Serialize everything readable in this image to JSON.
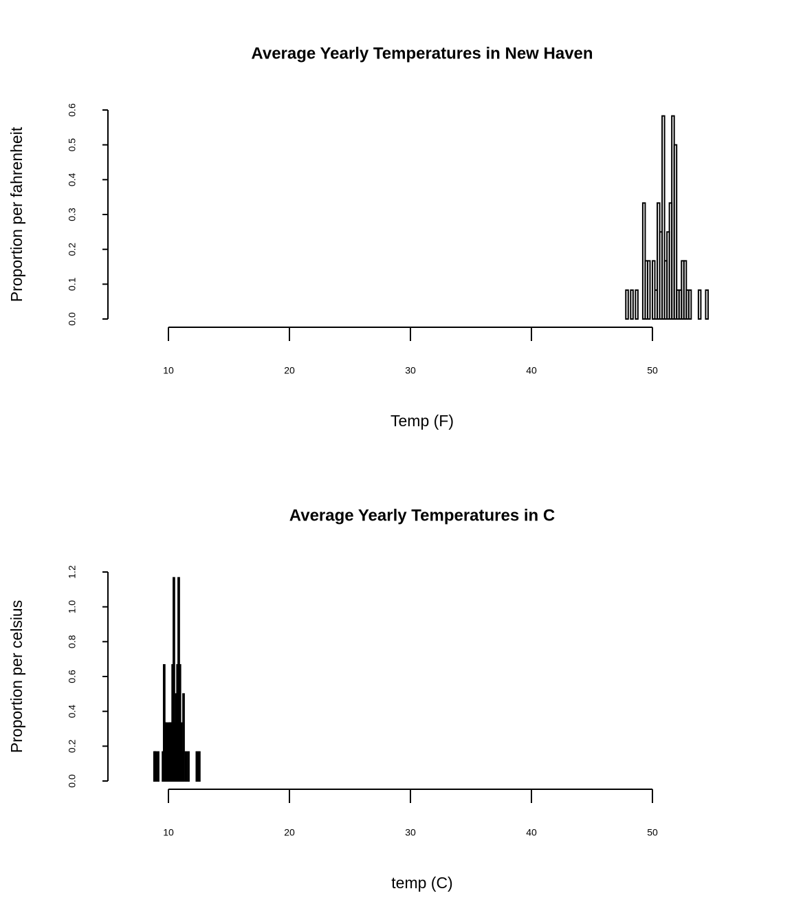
{
  "chart_data": [
    {
      "type": "histogram",
      "title": "Average Yearly Temperatures in New Haven",
      "x_label": "Temp (F)",
      "y_label": "Proportion per fahrenheit",
      "bins": [
        47.8,
        48.0,
        48.2,
        48.4,
        48.6,
        48.8,
        49.0,
        49.2,
        49.4,
        49.6,
        49.8,
        50.0,
        50.2,
        50.4,
        50.6,
        50.8,
        51.0,
        51.2,
        51.4,
        51.6,
        51.8,
        52.0,
        52.2,
        52.4,
        52.6,
        52.8,
        53.0,
        53.2,
        53.4,
        53.6,
        53.8,
        54.0,
        54.2,
        54.4,
        54.6
      ],
      "values": [
        0.083,
        0,
        0.083,
        0,
        0.083,
        0,
        0,
        0.333,
        0.167,
        0.167,
        0,
        0.167,
        0.083,
        0.333,
        0.25,
        0.583,
        0.167,
        0.25,
        0.333,
        0.583,
        0.5,
        0.083,
        0.083,
        0.167,
        0.167,
        0.083,
        0.083,
        0,
        0,
        0,
        0.083,
        0,
        0,
        0.083
      ],
      "color": "#000000",
      "xlim": [
        5,
        55
      ],
      "xticks": [
        10,
        20,
        30,
        40,
        50
      ],
      "ylim": [
        0,
        0.6
      ],
      "yticks": [
        {
          "value": 0,
          "label": "0.0"
        },
        0.1,
        0.2,
        0.3,
        0.4,
        0.5,
        0.6
      ]
    },
    {
      "type": "histogram",
      "title": "Average Yearly Temperatures in C",
      "x_label": "temp (C)",
      "y_label": "Proportion per celsius",
      "bins": [
        8.8,
        8.9,
        9.0,
        9.1,
        9.2,
        9.3,
        9.4,
        9.5,
        9.6,
        9.7,
        9.8,
        9.9,
        10.0,
        10.1,
        10.2,
        10.3,
        10.4,
        10.5,
        10.6,
        10.7,
        10.8,
        10.9,
        11.0,
        11.1,
        11.2,
        11.3,
        11.4,
        11.5,
        11.6,
        11.7,
        11.8,
        11.9,
        12.0,
        12.1,
        12.2,
        12.3,
        12.4,
        12.5,
        12.6
      ],
      "values": [
        0.167,
        0.167,
        0,
        0.167,
        0,
        0,
        0,
        0.167,
        0.667,
        0.333,
        0.333,
        0.167,
        0.333,
        0.333,
        0.333,
        0.667,
        1.167,
        0.333,
        0.5,
        0.667,
        1.167,
        0.667,
        0.333,
        0.167,
        0.5,
        0,
        0.167,
        0,
        0.167,
        0,
        0,
        0,
        0,
        0,
        0,
        0.167,
        0,
        0.167
      ],
      "color": "#000000",
      "xlim": [
        5,
        55
      ],
      "xticks": [
        10,
        20,
        30,
        40,
        50
      ],
      "ylim": [
        0,
        1.2
      ],
      "yticks": [
        {
          "value": 0,
          "label": "0.0"
        },
        {
          "value": 0.2,
          "label": "0.2"
        },
        {
          "value": 0.4,
          "label": "0.4"
        },
        {
          "value": 0.6,
          "label": "0.6"
        },
        {
          "value": 0.8,
          "label": "0.8"
        },
        {
          "value": 1,
          "label": "1.0"
        },
        1.2
      ]
    }
  ]
}
